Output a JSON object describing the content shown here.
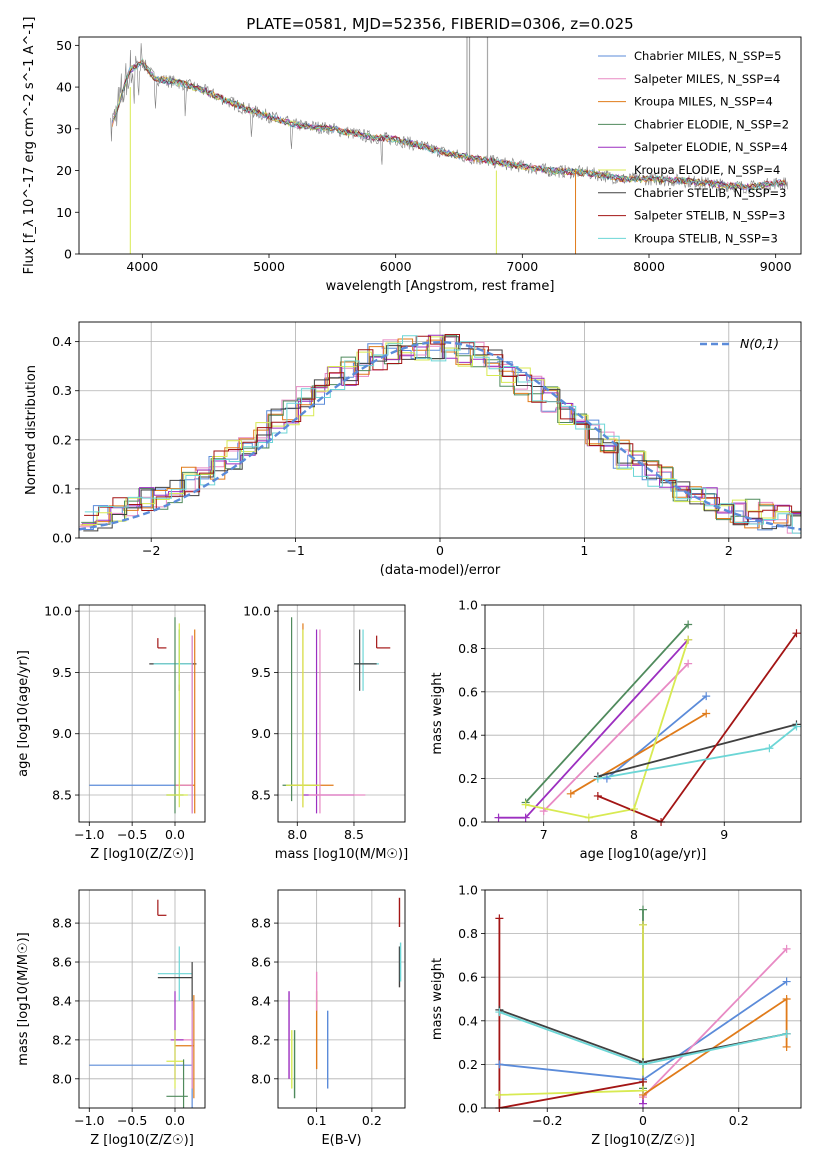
{
  "figure": {
    "title": "PLATE=0581, MJD=52356, FIBERID=0306, z=0.025"
  },
  "colors": {
    "Chabrier MILES": "#5b8bd9",
    "Salpeter MILES": "#e88ac4",
    "Kroupa MILES": "#e07b1a",
    "Chabrier ELODIE": "#4f8a5c",
    "Salpeter ELODIE": "#9c2fc0",
    "Kroupa ELODIE": "#d8ea52",
    "Chabrier STELIB": "#404040",
    "Salpeter STELIB": "#a31515",
    "Kroupa STELIB": "#6cd6d6",
    "spectrum": "#808080",
    "grid": "#b0b0b0"
  },
  "chart_data": [
    {
      "id": "spectrum",
      "type": "line",
      "xlabel": "wavelength [Angstrom, rest frame]",
      "ylabel": "Flux [f_λ 10^-17 erg cm^-2 s^-1 A^-1]",
      "xlim": [
        3500,
        9200
      ],
      "ylim": [
        0,
        52
      ],
      "xticks": [
        4000,
        5000,
        6000,
        7000,
        8000,
        9000
      ],
      "yticks": [
        0,
        10,
        20,
        30,
        40,
        50
      ],
      "grid": false,
      "legend_position": "top-right",
      "legend": [
        "Chabrier MILES, N_SSP=5",
        "Salpeter MILES, N_SSP=4",
        "Kroupa MILES, N_SSP=4",
        "Chabrier ELODIE, N_SSP=2",
        "Salpeter ELODIE, N_SSP=4",
        "Kroupa ELODIE, N_SSP=4",
        "Chabrier STELIB, N_SSP=3",
        "Salpeter STELIB, N_SSP=3",
        "Kroupa STELIB, N_SSP=3"
      ],
      "continuum": {
        "x": [
          3750,
          3900,
          4000,
          4100,
          4300,
          4500,
          4800,
          5000,
          5200,
          5500,
          5800,
          6000,
          6300,
          6500,
          6800,
          7000,
          7200,
          7500,
          7800,
          8000,
          8300,
          8600,
          8800,
          9000,
          9100
        ],
        "y": [
          30,
          44,
          46,
          42,
          41,
          39,
          35,
          33,
          31,
          30,
          28,
          27.5,
          25,
          23.5,
          22,
          21,
          20,
          19.5,
          18,
          18,
          17.5,
          16.5,
          16,
          17,
          17
        ]
      },
      "spikes_x": [
        6563,
        6583,
        6725
      ]
    },
    {
      "id": "residuals",
      "type": "histogram",
      "xlabel": "(data-model)/error",
      "ylabel": "Normed distribution",
      "xlim": [
        -2.5,
        2.5
      ],
      "ylim": [
        0,
        0.44
      ],
      "xticks": [
        -2,
        -1,
        0,
        1,
        2
      ],
      "yticks": [
        0.0,
        0.1,
        0.2,
        0.3,
        0.4
      ],
      "grid": true,
      "legend_position": "top-right",
      "reference_label": "N(0,1)",
      "reference_color": "#5b8bd9"
    },
    {
      "id": "age_vs_Z",
      "type": "scatter",
      "xlabel": "Z [log10(Z/Z☉)]",
      "ylabel": "age [log10(age/yr)]",
      "xlim": [
        -1.12,
        0.35
      ],
      "ylim": [
        8.28,
        10.05
      ],
      "xticks": [
        -1.0,
        -0.5,
        0.0
      ],
      "yticks": [
        8.5,
        9.0,
        9.5,
        10.0
      ],
      "grid": true
    },
    {
      "id": "age_vs_mass",
      "type": "scatter",
      "xlabel": "mass [log10(M/M☉)]",
      "xlim": [
        7.83,
        8.95
      ],
      "ylim": [
        8.28,
        10.05
      ],
      "xticks": [
        8.0,
        8.5
      ],
      "yticks": [
        8.5,
        9.0,
        9.5,
        10.0
      ],
      "grid": true
    },
    {
      "id": "weight_vs_age",
      "type": "line",
      "xlabel": "age [log10(age/yr)]",
      "ylabel": "mass weight",
      "xlim": [
        6.35,
        9.85
      ],
      "ylim": [
        0,
        1.0
      ],
      "xticks": [
        7,
        8,
        9
      ],
      "yticks": [
        0.0,
        0.2,
        0.4,
        0.6,
        0.8,
        1.0
      ],
      "grid": true,
      "series": [
        {
          "model": "Chabrier MILES",
          "x": [
            7.7,
            8.8
          ],
          "y": [
            0.2,
            0.58
          ]
        },
        {
          "model": "Salpeter MILES",
          "x": [
            7.0,
            8.6
          ],
          "y": [
            0.05,
            0.73
          ]
        },
        {
          "model": "Kroupa MILES",
          "x": [
            7.3,
            8.8
          ],
          "y": [
            0.13,
            0.5
          ]
        },
        {
          "model": "Chabrier ELODIE",
          "x": [
            6.8,
            8.6
          ],
          "y": [
            0.09,
            0.91
          ]
        },
        {
          "model": "Salpeter ELODIE",
          "x": [
            6.5,
            6.8,
            8.6
          ],
          "y": [
            0.02,
            0.02,
            0.84
          ]
        },
        {
          "model": "Kroupa ELODIE",
          "x": [
            6.8,
            7.5,
            8.0,
            8.6
          ],
          "y": [
            0.08,
            0.02,
            0.06,
            0.84
          ]
        },
        {
          "model": "Chabrier STELIB",
          "x": [
            7.6,
            9.8
          ],
          "y": [
            0.21,
            0.45
          ]
        },
        {
          "model": "Salpeter STELIB",
          "x": [
            7.6,
            8.3,
            9.8
          ],
          "y": [
            0.12,
            0.0,
            0.87
          ]
        },
        {
          "model": "Kroupa STELIB",
          "x": [
            7.6,
            9.5,
            9.8
          ],
          "y": [
            0.2,
            0.34,
            0.44
          ]
        }
      ]
    },
    {
      "id": "mass_vs_Z",
      "type": "scatter",
      "xlabel": "Z [log10(Z/Z☉)]",
      "ylabel": "mass [log10(M/M☉)]",
      "xlim": [
        -1.12,
        0.35
      ],
      "ylim": [
        7.85,
        8.97
      ],
      "xticks": [
        -1.0,
        -0.5,
        0.0
      ],
      "yticks": [
        8.0,
        8.2,
        8.4,
        8.6,
        8.8
      ],
      "grid": true
    },
    {
      "id": "mass_vs_ebv",
      "type": "scatter",
      "xlabel": "E(B-V)",
      "xlim": [
        0.03,
        0.26
      ],
      "ylim": [
        7.85,
        8.97
      ],
      "xticks": [
        0.1,
        0.2
      ],
      "yticks": [
        8.0,
        8.2,
        8.4,
        8.6,
        8.8
      ],
      "grid": true
    },
    {
      "id": "weight_vs_Z",
      "type": "line",
      "xlabel": "Z [log10(Z/Z☉)]",
      "ylabel": "mass weight",
      "xlim": [
        -0.33,
        0.33
      ],
      "ylim": [
        0,
        1.0
      ],
      "xticks": [
        -0.2,
        0.0,
        0.2
      ],
      "yticks": [
        0.0,
        0.2,
        0.4,
        0.6,
        0.8,
        1.0
      ],
      "grid": true,
      "series": [
        {
          "model": "Chabrier MILES",
          "x": [
            -0.3,
            0.0,
            0.3
          ],
          "y": [
            0.2,
            0.13,
            0.58
          ]
        },
        {
          "model": "Salpeter MILES",
          "x": [
            0.0,
            0.3
          ],
          "y": [
            0.05,
            0.73
          ]
        },
        {
          "model": "Kroupa MILES",
          "x": [
            0.0,
            0.3,
            0.3
          ],
          "y": [
            0.06,
            0.5,
            0.28
          ]
        },
        {
          "model": "Chabrier ELODIE",
          "x": [
            0.0,
            0.0
          ],
          "y": [
            0.09,
            0.91
          ]
        },
        {
          "model": "Salpeter ELODIE",
          "x": [
            0.0,
            0.0
          ],
          "y": [
            0.02,
            0.84
          ]
        },
        {
          "model": "Kroupa ELODIE",
          "x": [
            -0.3,
            0.0,
            0.0
          ],
          "y": [
            0.06,
            0.08,
            0.84
          ]
        },
        {
          "model": "Chabrier STELIB",
          "x": [
            -0.3,
            0.0,
            0.3
          ],
          "y": [
            0.45,
            0.21,
            0.34
          ]
        },
        {
          "model": "Salpeter STELIB",
          "x": [
            -0.3,
            -0.3,
            0.0
          ],
          "y": [
            0.87,
            0.0,
            0.12
          ]
        },
        {
          "model": "Kroupa STELIB",
          "x": [
            -0.3,
            0.0,
            0.3
          ],
          "y": [
            0.44,
            0.2,
            0.34
          ]
        }
      ]
    }
  ]
}
